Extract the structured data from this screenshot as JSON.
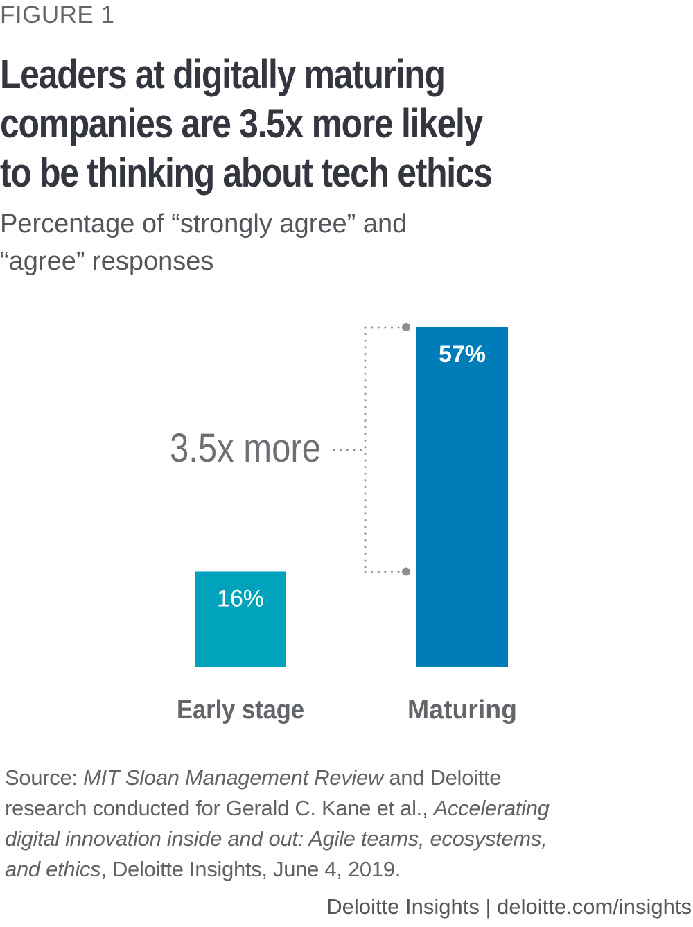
{
  "figure_label": "FIGURE 1",
  "title_lines": [
    "Leaders at digitally maturing",
    "companies are 3.5x more likely",
    "to be thinking about tech ethics"
  ],
  "subtitle_lines": [
    "Percentage of “strongly agree” and",
    "“agree” responses"
  ],
  "chart_data": {
    "type": "bar",
    "title": "Leaders at digitally maturing companies are 3.5x more likely to be thinking about tech ethics",
    "subtitle": "Percentage of “strongly agree” and “agree” responses",
    "categories": [
      "Early stage",
      "Maturing"
    ],
    "values": [
      16,
      57
    ],
    "value_labels": [
      "16%",
      "57%"
    ],
    "colors": [
      "#00a3bb",
      "#007cb9"
    ],
    "xlabel": "",
    "ylabel": "",
    "ylim": [
      0,
      57
    ],
    "grid": false,
    "legend": "none",
    "annotation": {
      "text": "3.5x more",
      "connects": [
        "Maturing",
        "Early stage"
      ]
    }
  },
  "source": {
    "lines": [
      [
        {
          "t": "Source: ",
          "i": false
        },
        {
          "t": "MIT Sloan Management Review",
          "i": true
        },
        {
          "t": " and Deloitte",
          "i": false
        }
      ],
      [
        {
          "t": "research conducted for Gerald C. Kane et al., ",
          "i": false
        },
        {
          "t": "Accelerating",
          "i": true
        }
      ],
      [
        {
          "t": "digital innovation inside and out: Agile teams, ecosystems,",
          "i": true
        }
      ],
      [
        {
          "t": "and ethics",
          "i": true
        },
        {
          "t": ", Deloitte Insights, June 4, 2019.",
          "i": false
        }
      ]
    ]
  },
  "footer": "Deloitte Insights | deloitte.com/insights"
}
